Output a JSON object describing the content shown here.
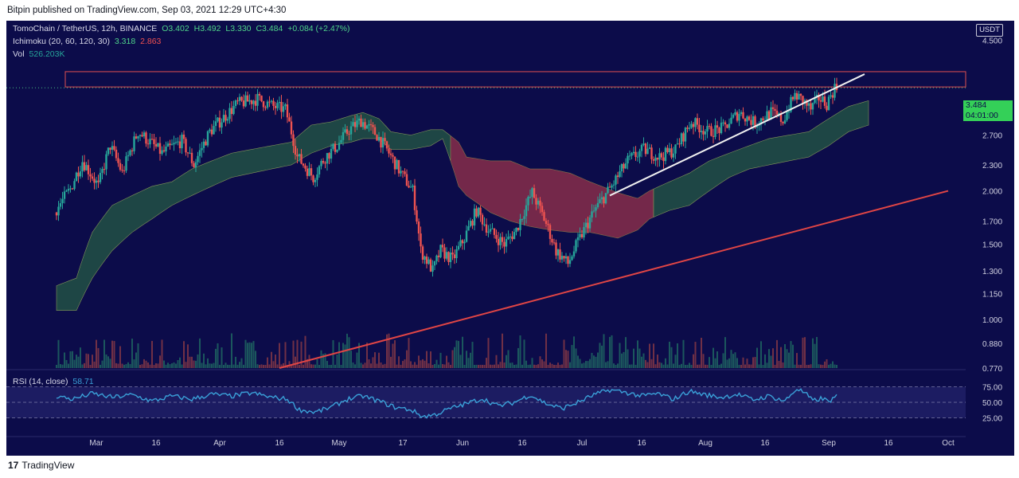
{
  "header": {
    "published_text": "Bitpin published on TradingView.com, Sep 03, 2021 12:29 UTC+4:30"
  },
  "legend": {
    "symbol": "TomoChain / TetherUS, 12h, BINANCE",
    "open": "O3.402",
    "high": "H3.492",
    "low": "L3.330",
    "close": "C3.484",
    "change": "+0.084 (+2.47%)",
    "ichimoku_label": "Ichimoku (20, 60, 120, 30)",
    "ichimoku_v1": "3.318",
    "ichimoku_v2": "2.863",
    "vol_label": "Vol",
    "vol_value": "526.203K",
    "rsi_label": "RSI (14, close)",
    "rsi_value": "58.71"
  },
  "currency_button": "USDT",
  "price_badge": {
    "price": "3.484",
    "countdown": "04:01:00"
  },
  "footer": {
    "brand": "TradingView"
  },
  "colors": {
    "background": "#0c0c4a",
    "up": "#26a69a",
    "down": "#ef5350",
    "cloud_bull": "#1f4a45",
    "cloud_bear": "#7a2a4a",
    "rsi": "#3aa0d8",
    "trend_red": "#e04545",
    "trend_white": "#f0f0f0",
    "price_badge": "#34d058"
  },
  "chart_data": {
    "type": "candlestick",
    "symbol": "TOMO/USDT",
    "interval": "12h",
    "exchange": "BINANCE",
    "y_scale": "log",
    "price_ticks": [
      "4.500",
      "3.100",
      "2.700",
      "2.300",
      "2.000",
      "1.700",
      "1.500",
      "1.300",
      "1.150",
      "1.000",
      "0.880",
      "0.770"
    ],
    "rsi_ticks": [
      "75.00",
      "50.00",
      "25.00"
    ],
    "x_ticks": [
      {
        "label": "Mar",
        "day": 1
      },
      {
        "label": "16",
        "day": 16
      },
      {
        "label": "Apr",
        "day": 32
      },
      {
        "label": "16",
        "day": 47
      },
      {
        "label": "May",
        "day": 62
      },
      {
        "label": "17",
        "day": 78
      },
      {
        "label": "Jun",
        "day": 93
      },
      {
        "label": "16",
        "day": 108
      },
      {
        "label": "Jul",
        "day": 123
      },
      {
        "label": "16",
        "day": 138
      },
      {
        "label": "Aug",
        "day": 154
      },
      {
        "label": "16",
        "day": 169
      },
      {
        "label": "Sep",
        "day": 185
      },
      {
        "label": "16",
        "day": 200
      },
      {
        "label": "Oct",
        "day": 215
      }
    ],
    "close_path": [
      {
        "day": -9,
        "v": 1.78
      },
      {
        "day": -5,
        "v": 2.02
      },
      {
        "day": -2,
        "v": 2.35
      },
      {
        "day": 2,
        "v": 2.05
      },
      {
        "day": 5,
        "v": 2.55
      },
      {
        "day": 8,
        "v": 2.2
      },
      {
        "day": 12,
        "v": 2.75
      },
      {
        "day": 18,
        "v": 2.45
      },
      {
        "day": 23,
        "v": 2.62
      },
      {
        "day": 26,
        "v": 2.3
      },
      {
        "day": 30,
        "v": 2.75
      },
      {
        "day": 34,
        "v": 3.0
      },
      {
        "day": 37,
        "v": 3.2
      },
      {
        "day": 42,
        "v": 3.28
      },
      {
        "day": 46,
        "v": 3.15
      },
      {
        "day": 49,
        "v": 3.1
      },
      {
        "day": 52,
        "v": 2.4
      },
      {
        "day": 56,
        "v": 2.15
      },
      {
        "day": 59,
        "v": 2.4
      },
      {
        "day": 62,
        "v": 2.55
      },
      {
        "day": 65,
        "v": 2.78
      },
      {
        "day": 68,
        "v": 2.92
      },
      {
        "day": 72,
        "v": 2.7
      },
      {
        "day": 75,
        "v": 2.45
      },
      {
        "day": 78,
        "v": 2.2
      },
      {
        "day": 81,
        "v": 2.0
      },
      {
        "day": 83,
        "v": 1.45
      },
      {
        "day": 86,
        "v": 1.3
      },
      {
        "day": 88,
        "v": 1.45
      },
      {
        "day": 91,
        "v": 1.38
      },
      {
        "day": 94,
        "v": 1.55
      },
      {
        "day": 97,
        "v": 1.8
      },
      {
        "day": 100,
        "v": 1.62
      },
      {
        "day": 104,
        "v": 1.5
      },
      {
        "day": 107,
        "v": 1.62
      },
      {
        "day": 111,
        "v": 1.98
      },
      {
        "day": 114,
        "v": 1.72
      },
      {
        "day": 117,
        "v": 1.45
      },
      {
        "day": 120,
        "v": 1.35
      },
      {
        "day": 123,
        "v": 1.55
      },
      {
        "day": 127,
        "v": 1.82
      },
      {
        "day": 131,
        "v": 2.05
      },
      {
        "day": 135,
        "v": 2.35
      },
      {
        "day": 139,
        "v": 2.5
      },
      {
        "day": 143,
        "v": 2.4
      },
      {
        "day": 147,
        "v": 2.5
      },
      {
        "day": 151,
        "v": 2.9
      },
      {
        "day": 155,
        "v": 2.75
      },
      {
        "day": 159,
        "v": 2.8
      },
      {
        "day": 163,
        "v": 3.05
      },
      {
        "day": 167,
        "v": 2.88
      },
      {
        "day": 171,
        "v": 3.05
      },
      {
        "day": 174,
        "v": 2.92
      },
      {
        "day": 177,
        "v": 3.35
      },
      {
        "day": 179,
        "v": 3.25
      },
      {
        "day": 181,
        "v": 3.1
      },
      {
        "day": 183,
        "v": 3.3
      },
      {
        "day": 185,
        "v": 3.2
      },
      {
        "day": 187,
        "v": 3.484
      }
    ],
    "cloud_upper": [
      {
        "day": -9,
        "v": 1.2
      },
      {
        "day": -4,
        "v": 1.25
      },
      {
        "day": 0,
        "v": 1.6
      },
      {
        "day": 5,
        "v": 1.85
      },
      {
        "day": 10,
        "v": 1.95
      },
      {
        "day": 15,
        "v": 2.05
      },
      {
        "day": 20,
        "v": 2.1
      },
      {
        "day": 25,
        "v": 2.25
      },
      {
        "day": 30,
        "v": 2.35
      },
      {
        "day": 35,
        "v": 2.45
      },
      {
        "day": 40,
        "v": 2.5
      },
      {
        "day": 45,
        "v": 2.55
      },
      {
        "day": 50,
        "v": 2.6
      },
      {
        "day": 55,
        "v": 2.85
      },
      {
        "day": 60,
        "v": 2.9
      },
      {
        "day": 65,
        "v": 3.0
      },
      {
        "day": 68,
        "v": 3.05
      },
      {
        "day": 72,
        "v": 2.95
      },
      {
        "day": 75,
        "v": 2.75
      },
      {
        "day": 80,
        "v": 2.7
      },
      {
        "day": 85,
        "v": 2.78
      },
      {
        "day": 88,
        "v": 2.78
      },
      {
        "day": 92,
        "v": 2.6
      },
      {
        "day": 94,
        "v": 2.4
      },
      {
        "day": 100,
        "v": 2.35
      },
      {
        "day": 105,
        "v": 2.35
      },
      {
        "day": 110,
        "v": 2.25
      },
      {
        "day": 115,
        "v": 2.25
      },
      {
        "day": 120,
        "v": 2.2
      },
      {
        "day": 125,
        "v": 2.1
      },
      {
        "day": 132,
        "v": 1.98
      },
      {
        "day": 137,
        "v": 1.92
      },
      {
        "day": 140,
        "v": 2.0
      },
      {
        "day": 145,
        "v": 2.1
      },
      {
        "day": 150,
        "v": 2.2
      },
      {
        "day": 155,
        "v": 2.35
      },
      {
        "day": 160,
        "v": 2.45
      },
      {
        "day": 165,
        "v": 2.55
      },
      {
        "day": 170,
        "v": 2.65
      },
      {
        "day": 175,
        "v": 2.7
      },
      {
        "day": 180,
        "v": 2.75
      },
      {
        "day": 185,
        "v": 2.95
      },
      {
        "day": 190,
        "v": 3.15
      },
      {
        "day": 195,
        "v": 3.25
      }
    ],
    "cloud_lower": [
      {
        "day": -9,
        "v": 1.05
      },
      {
        "day": -4,
        "v": 1.05
      },
      {
        "day": 0,
        "v": 1.25
      },
      {
        "day": 5,
        "v": 1.45
      },
      {
        "day": 10,
        "v": 1.6
      },
      {
        "day": 15,
        "v": 1.72
      },
      {
        "day": 20,
        "v": 1.85
      },
      {
        "day": 25,
        "v": 1.95
      },
      {
        "day": 30,
        "v": 2.05
      },
      {
        "day": 35,
        "v": 2.15
      },
      {
        "day": 40,
        "v": 2.2
      },
      {
        "day": 45,
        "v": 2.25
      },
      {
        "day": 50,
        "v": 2.3
      },
      {
        "day": 55,
        "v": 2.45
      },
      {
        "day": 60,
        "v": 2.55
      },
      {
        "day": 65,
        "v": 2.6
      },
      {
        "day": 68,
        "v": 2.65
      },
      {
        "day": 72,
        "v": 2.65
      },
      {
        "day": 75,
        "v": 2.5
      },
      {
        "day": 80,
        "v": 2.5
      },
      {
        "day": 85,
        "v": 2.55
      },
      {
        "day": 88,
        "v": 2.65
      },
      {
        "day": 92,
        "v": 2.05
      },
      {
        "day": 94,
        "v": 1.95
      },
      {
        "day": 100,
        "v": 1.78
      },
      {
        "day": 105,
        "v": 1.7
      },
      {
        "day": 110,
        "v": 1.65
      },
      {
        "day": 115,
        "v": 1.62
      },
      {
        "day": 120,
        "v": 1.6
      },
      {
        "day": 125,
        "v": 1.6
      },
      {
        "day": 132,
        "v": 1.55
      },
      {
        "day": 137,
        "v": 1.62
      },
      {
        "day": 140,
        "v": 1.72
      },
      {
        "day": 145,
        "v": 1.8
      },
      {
        "day": 150,
        "v": 1.85
      },
      {
        "day": 155,
        "v": 2.0
      },
      {
        "day": 160,
        "v": 2.15
      },
      {
        "day": 165,
        "v": 2.25
      },
      {
        "day": 170,
        "v": 2.3
      },
      {
        "day": 175,
        "v": 2.35
      },
      {
        "day": 180,
        "v": 2.4
      },
      {
        "day": 185,
        "v": 2.55
      },
      {
        "day": 190,
        "v": 2.75
      },
      {
        "day": 195,
        "v": 2.85
      }
    ],
    "cloud_bear_range": [
      90,
      141
    ],
    "rsi_path": [
      {
        "day": -9,
        "v": 60
      },
      {
        "day": -5,
        "v": 55
      },
      {
        "day": 0,
        "v": 64
      },
      {
        "day": 5,
        "v": 58
      },
      {
        "day": 10,
        "v": 62
      },
      {
        "day": 15,
        "v": 52
      },
      {
        "day": 20,
        "v": 60
      },
      {
        "day": 25,
        "v": 55
      },
      {
        "day": 30,
        "v": 63
      },
      {
        "day": 35,
        "v": 60
      },
      {
        "day": 40,
        "v": 65
      },
      {
        "day": 45,
        "v": 58
      },
      {
        "day": 49,
        "v": 55
      },
      {
        "day": 52,
        "v": 38
      },
      {
        "day": 56,
        "v": 34
      },
      {
        "day": 60,
        "v": 42
      },
      {
        "day": 64,
        "v": 55
      },
      {
        "day": 68,
        "v": 60
      },
      {
        "day": 72,
        "v": 52
      },
      {
        "day": 76,
        "v": 42
      },
      {
        "day": 80,
        "v": 38
      },
      {
        "day": 83,
        "v": 27
      },
      {
        "day": 86,
        "v": 30
      },
      {
        "day": 90,
        "v": 40
      },
      {
        "day": 94,
        "v": 48
      },
      {
        "day": 98,
        "v": 56
      },
      {
        "day": 102,
        "v": 44
      },
      {
        "day": 106,
        "v": 50
      },
      {
        "day": 110,
        "v": 62
      },
      {
        "day": 114,
        "v": 48
      },
      {
        "day": 118,
        "v": 40
      },
      {
        "day": 122,
        "v": 50
      },
      {
        "day": 126,
        "v": 62
      },
      {
        "day": 130,
        "v": 70
      },
      {
        "day": 134,
        "v": 66
      },
      {
        "day": 138,
        "v": 60
      },
      {
        "day": 142,
        "v": 64
      },
      {
        "day": 146,
        "v": 55
      },
      {
        "day": 150,
        "v": 68
      },
      {
        "day": 154,
        "v": 62
      },
      {
        "day": 158,
        "v": 58
      },
      {
        "day": 162,
        "v": 63
      },
      {
        "day": 166,
        "v": 54
      },
      {
        "day": 170,
        "v": 60
      },
      {
        "day": 174,
        "v": 52
      },
      {
        "day": 177,
        "v": 72
      },
      {
        "day": 179,
        "v": 65
      },
      {
        "day": 181,
        "v": 52
      },
      {
        "day": 183,
        "v": 56
      },
      {
        "day": 185,
        "v": 52
      },
      {
        "day": 187,
        "v": 58.71
      }
    ],
    "resistance_zone": {
      "from": 3.5,
      "to": 3.8
    },
    "last_price": 3.484,
    "trendlines": [
      {
        "color": "red",
        "from": {
          "day": 47,
          "v": 0.77
        },
        "to": {
          "day": 215,
          "v": 2.0
        }
      },
      {
        "color": "white",
        "from": {
          "day": 130,
          "v": 1.95
        },
        "to": {
          "day": 194,
          "v": 3.75
        }
      }
    ]
  }
}
